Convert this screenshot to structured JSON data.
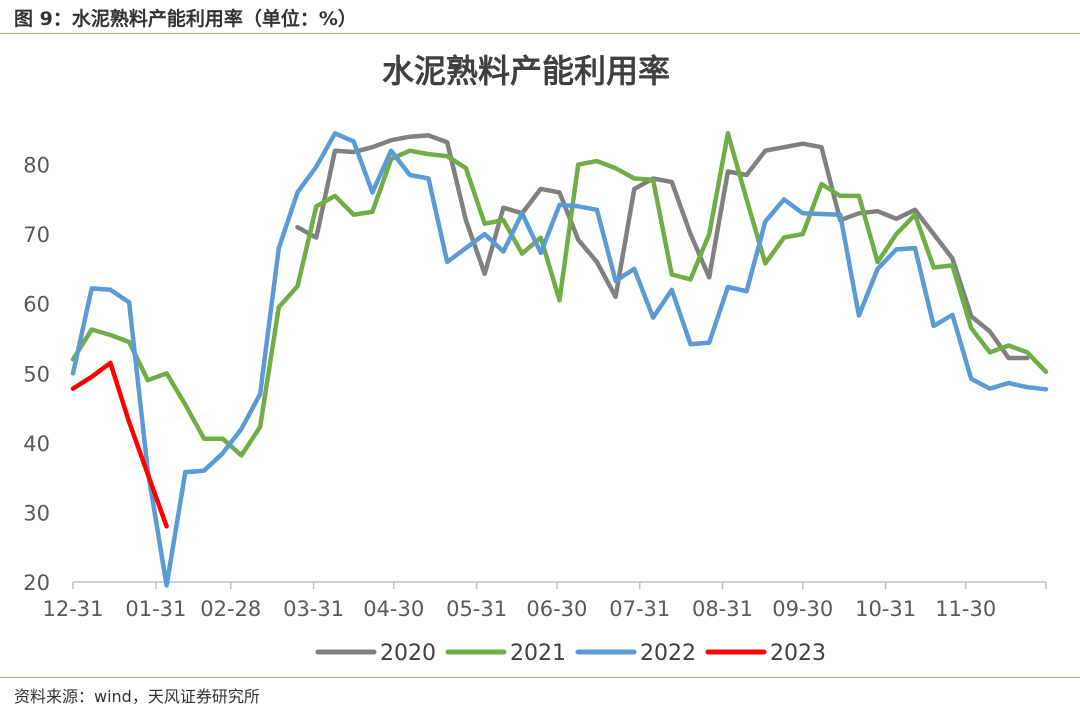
{
  "figure_caption": "图 9：水泥熟料产能利用率（单位：%）",
  "source_note": "资料来源：wind，天风证券研究所",
  "chart_data": {
    "type": "line",
    "title": "水泥熟料产能利用率",
    "xlabel": "",
    "ylabel": "",
    "ylim": [
      20,
      90
    ],
    "xlim": [
      0,
      52
    ],
    "y_ticks": [
      20,
      30,
      40,
      50,
      60,
      70,
      80
    ],
    "x_ticks": [
      {
        "label": "12-31",
        "week": 0
      },
      {
        "label": "01-31",
        "week": 4.43
      },
      {
        "label": "02-28",
        "week": 8.43
      },
      {
        "label": "03-31",
        "week": 12.86
      },
      {
        "label": "04-30",
        "week": 17.14
      },
      {
        "label": "05-31",
        "week": 21.57
      },
      {
        "label": "06-30",
        "week": 25.86
      },
      {
        "label": "07-31",
        "week": 30.29
      },
      {
        "label": "08-31",
        "week": 34.71
      },
      {
        "label": "09-30",
        "week": 39
      },
      {
        "label": "10-31",
        "week": 43.43
      },
      {
        "label": "11-30",
        "week": 47.71
      }
    ],
    "grid": false,
    "legend": "bottom",
    "series": [
      {
        "name": "2020",
        "color": "#808080",
        "values": [
          null,
          null,
          null,
          null,
          null,
          null,
          null,
          null,
          null,
          null,
          null,
          null,
          71,
          69.5,
          82,
          81.8,
          82.5,
          83.5,
          84,
          84.2,
          83.2,
          72,
          64.3,
          73.8,
          73,
          76.5,
          76,
          69.2,
          66,
          61,
          76.5,
          78,
          77.5,
          70,
          63.8,
          79,
          78.5,
          82,
          82.5,
          83,
          82.5,
          72,
          73,
          73.3,
          72.2,
          73.5,
          70,
          66.5,
          58.2,
          56,
          52.2,
          52.2
        ]
      },
      {
        "name": "2021",
        "color": "#70AD47",
        "values": [
          52,
          56.3,
          55.5,
          54.5,
          49,
          50,
          45.5,
          40.6,
          40.6,
          38.2,
          42.3,
          59.5,
          62.5,
          74,
          75.5,
          72.8,
          73.2,
          80.8,
          82,
          81.5,
          81.2,
          79.5,
          71.5,
          72,
          67.2,
          69.5,
          60.5,
          80,
          80.5,
          79.5,
          78,
          77.8,
          64.2,
          63.5,
          70,
          84.5,
          75,
          65.8,
          69.5,
          70,
          77.2,
          75.5,
          75.5,
          66,
          70,
          72.8,
          65.2,
          65.5,
          56.5,
          53,
          54,
          53,
          50.2
        ]
      },
      {
        "name": "2022",
        "color": "#5B9BD5",
        "values": [
          50,
          62.2,
          62,
          60.2,
          36,
          19.5,
          35.8,
          36,
          38.5,
          42,
          47,
          68,
          76,
          79.7,
          84.5,
          83.3,
          76,
          82,
          78.5,
          78,
          66,
          68,
          70,
          67.5,
          73,
          67.3,
          74.2,
          74,
          73.5,
          63.3,
          65,
          58,
          62,
          54.2,
          54.4,
          62.4,
          61.8,
          71.8,
          75,
          73,
          72.9,
          72.8,
          58.3,
          65,
          67.8,
          68,
          56.8,
          58.4,
          49.2,
          47.8,
          48.6,
          48,
          47.7
        ]
      },
      {
        "name": "2023",
        "color": "#FF0000",
        "values": [
          47.8,
          49.5,
          51.5,
          43,
          35.5,
          28
        ]
      }
    ]
  }
}
